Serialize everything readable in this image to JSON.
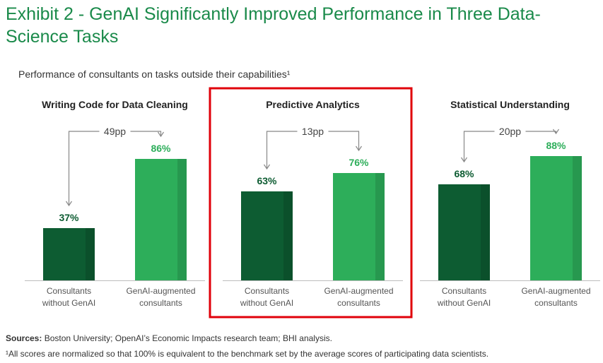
{
  "title": "Exhibit 2 - GenAI Significantly Improved Performance in Three Data-Science Tasks",
  "subtitle": "Performance of consultants on tasks outside their capabilities¹",
  "sources_label": "Sources:",
  "sources_text": " Boston University; OpenAI’s Economic Impacts research team; BHI analysis.",
  "footnote": "¹All scores are normalized so that 100% is equivalent to the benchmark set by the average scores of participating data scientists.",
  "colors": {
    "dark": "#0d5c32",
    "light": "#2dae5a",
    "title": "#1a8a4a",
    "highlight": "#e0000a"
  },
  "chart_data": [
    {
      "type": "bar",
      "title": "Writing Code for Data Cleaning",
      "categories": [
        "Consultants without GenAI",
        "GenAI-augmented consultants"
      ],
      "category_lines": [
        [
          "Consultants",
          "without GenAI"
        ],
        [
          "GenAI-augmented",
          "consultants"
        ]
      ],
      "values": [
        37,
        86
      ],
      "value_labels": [
        "37%",
        "86%"
      ],
      "diff_label": "49pp",
      "ylim": [
        0,
        100
      ],
      "highlighted": false
    },
    {
      "type": "bar",
      "title": "Predictive Analytics",
      "categories": [
        "Consultants without GenAI",
        "GenAI-augmented consultants"
      ],
      "category_lines": [
        [
          "Consultants",
          "without GenAI"
        ],
        [
          "GenAI-augmented",
          "consultants"
        ]
      ],
      "values": [
        63,
        76
      ],
      "value_labels": [
        "63%",
        "76%"
      ],
      "diff_label": "13pp",
      "ylim": [
        0,
        100
      ],
      "highlighted": true
    },
    {
      "type": "bar",
      "title": "Statistical Understanding",
      "categories": [
        "Consultants without GenAI",
        "GenAI-augmented consultants"
      ],
      "category_lines": [
        [
          "Consultants",
          "without GenAI"
        ],
        [
          "GenAI-augmented",
          "consultants"
        ]
      ],
      "values": [
        68,
        88
      ],
      "value_labels": [
        "68%",
        "88%"
      ],
      "diff_label": "20pp",
      "ylim": [
        0,
        100
      ],
      "highlighted": false
    }
  ]
}
